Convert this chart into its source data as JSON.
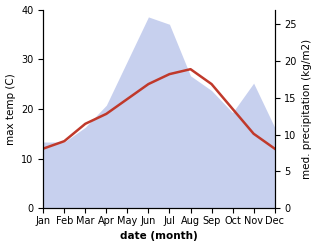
{
  "months": [
    "Jan",
    "Feb",
    "Mar",
    "Apr",
    "May",
    "Jun",
    "Jul",
    "Aug",
    "Sep",
    "Oct",
    "Nov",
    "Dec"
  ],
  "temperature": [
    12,
    13.5,
    17,
    19,
    22,
    25,
    27,
    28,
    25,
    20,
    15,
    12
  ],
  "precipitation": [
    9,
    9,
    11,
    14,
    20,
    26,
    25,
    18,
    16,
    13,
    17,
    11
  ],
  "temp_color": "#c0392b",
  "precip_color": "#b0bce8",
  "left_ylabel": "max temp (C)",
  "right_ylabel": "med. precipitation (kg/m2)",
  "xlabel": "date (month)",
  "left_ylim": [
    0,
    40
  ],
  "right_ylim": [
    0,
    27
  ],
  "left_yticks": [
    0,
    10,
    20,
    30,
    40
  ],
  "right_yticks": [
    0,
    5,
    10,
    15,
    20,
    25
  ],
  "bg_color": "#ffffff",
  "temp_linewidth": 1.8,
  "label_fontsize": 7.5,
  "tick_fontsize": 7
}
